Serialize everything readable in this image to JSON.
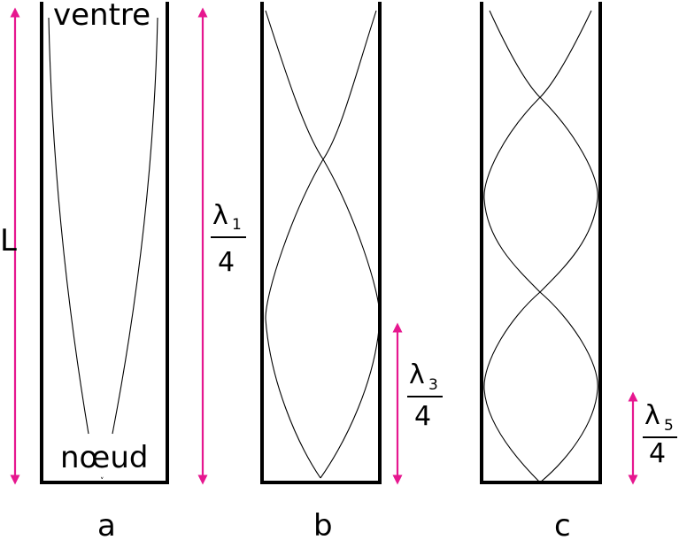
{
  "labels": {
    "antinode": "ventre",
    "node": "nœud",
    "length": "L",
    "tube_a": "a",
    "tube_b": "b",
    "tube_c": "c"
  },
  "fractions": {
    "f1": {
      "lambda": "λ",
      "sub": "1",
      "den": "4"
    },
    "f3": {
      "lambda": "λ",
      "sub": "3",
      "den": "4"
    },
    "f5": {
      "lambda": "λ",
      "sub": "5",
      "den": "4"
    }
  },
  "colors": {
    "arrow": "#e6178f",
    "line": "#000000"
  }
}
